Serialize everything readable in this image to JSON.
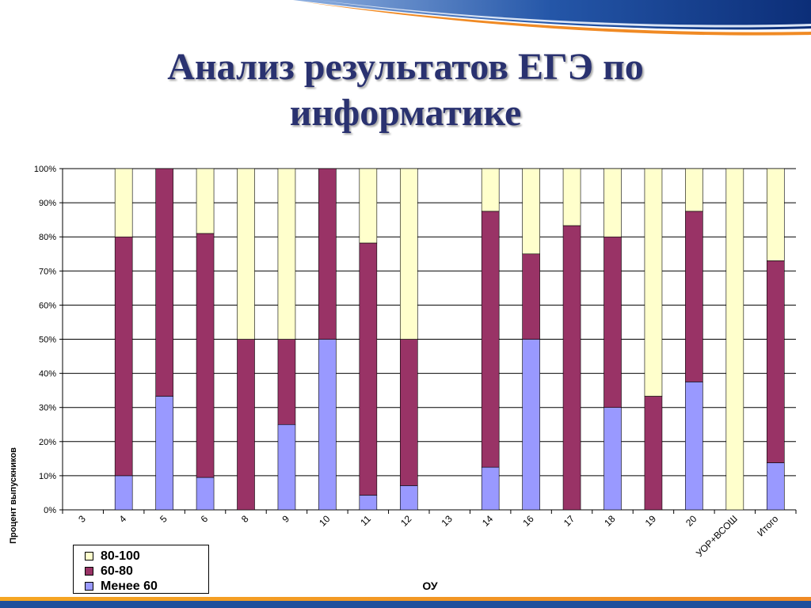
{
  "slide": {
    "title_line1": "Анализ результатов ЕГЭ по",
    "title_line2": "информатике",
    "title_color": "#2a3270"
  },
  "chart_data": {
    "type": "bar",
    "stacked": "percent",
    "title": "",
    "xlabel": "ОУ",
    "ylabel": "Процент выпускников",
    "ylim": [
      0,
      100
    ],
    "yticks": [
      "0%",
      "10%",
      "20%",
      "30%",
      "40%",
      "50%",
      "60%",
      "70%",
      "80%",
      "90%",
      "100%"
    ],
    "grid": true,
    "legend_position": "bottom-left",
    "categories": [
      "3",
      "4",
      "5",
      "6",
      "8",
      "9",
      "10",
      "11",
      "12",
      "13",
      "14",
      "16",
      "17",
      "18",
      "19",
      "20",
      "УОР+ВСОШ",
      "Итого"
    ],
    "series": [
      {
        "name": "Менее 60",
        "color": "#9999ff",
        "values": [
          0,
          10,
          33.3,
          9.5,
          0,
          25,
          50,
          4.3,
          7.1,
          0,
          12.5,
          50,
          0,
          30,
          0,
          37.5,
          0,
          13.8
        ]
      },
      {
        "name": "60-80",
        "color": "#993366",
        "values": [
          0,
          70,
          66.7,
          71.5,
          50,
          25,
          50,
          73.9,
          42.9,
          0,
          75,
          25,
          83.3,
          50,
          33.3,
          50,
          0,
          59.2
        ]
      },
      {
        "name": "80-100",
        "color": "#ffffcc",
        "values": [
          0,
          20,
          0,
          19,
          50,
          50,
          0,
          21.8,
          50,
          0,
          12.5,
          25,
          16.7,
          20,
          66.7,
          12.5,
          100,
          27
        ]
      }
    ]
  }
}
